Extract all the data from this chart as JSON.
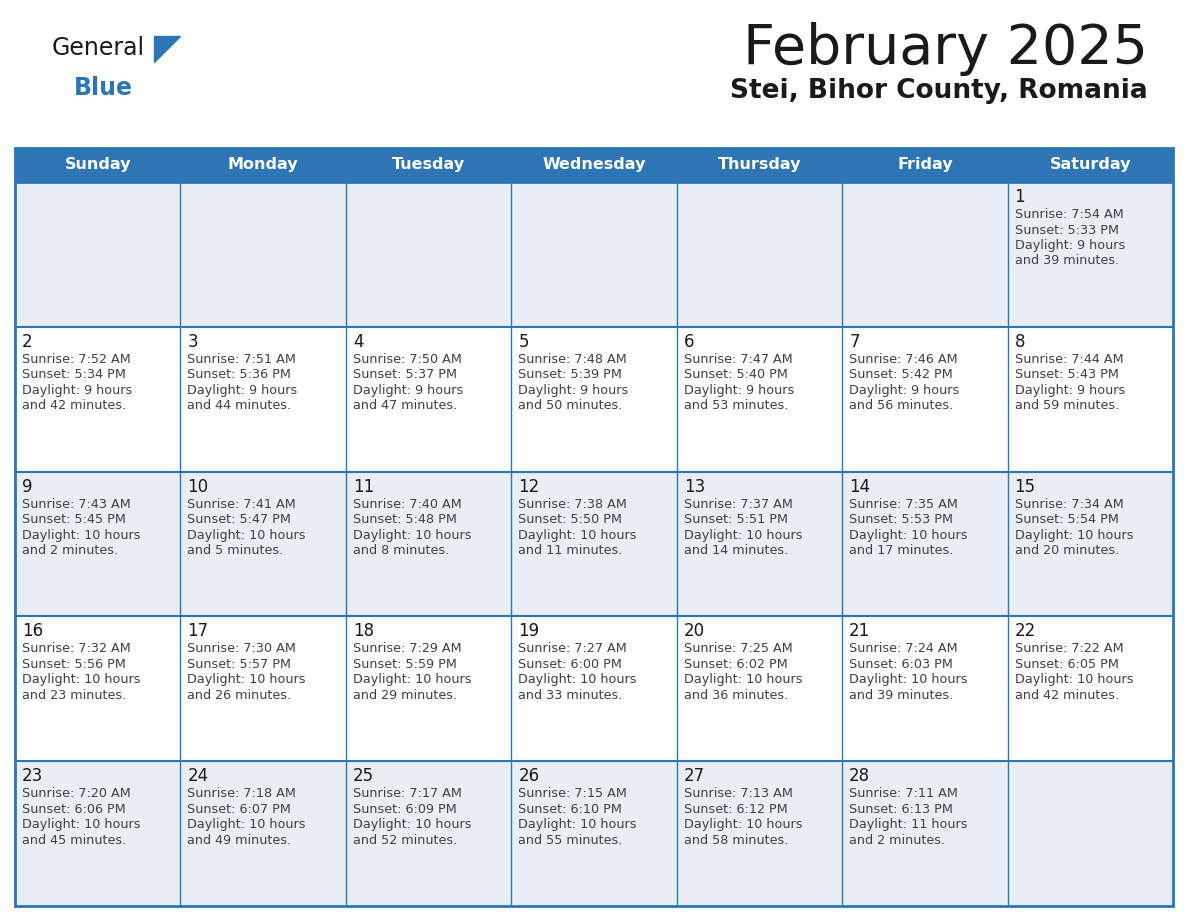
{
  "title": "February 2025",
  "subtitle": "Stei, Bihor County, Romania",
  "header_bg": "#2e75b6",
  "header_text_color": "#ffffff",
  "cell_border_color": "#2e75b6",
  "day_number_color": "#1a1a1a",
  "info_text_color": "#404040",
  "background_color": "#ffffff",
  "row1_bg": "#e8eef4",
  "days_of_week": [
    "Sunday",
    "Monday",
    "Tuesday",
    "Wednesday",
    "Thursday",
    "Friday",
    "Saturday"
  ],
  "logo_general_color": "#1a1a1a",
  "logo_blue_color": "#2e75b6",
  "calendar_data": [
    [
      null,
      null,
      null,
      null,
      null,
      null,
      {
        "day": 1,
        "sunrise": "7:54 AM",
        "sunset": "5:33 PM",
        "daylight": "9 hours and 39 minutes."
      }
    ],
    [
      {
        "day": 2,
        "sunrise": "7:52 AM",
        "sunset": "5:34 PM",
        "daylight": "9 hours and 42 minutes."
      },
      {
        "day": 3,
        "sunrise": "7:51 AM",
        "sunset": "5:36 PM",
        "daylight": "9 hours and 44 minutes."
      },
      {
        "day": 4,
        "sunrise": "7:50 AM",
        "sunset": "5:37 PM",
        "daylight": "9 hours and 47 minutes."
      },
      {
        "day": 5,
        "sunrise": "7:48 AM",
        "sunset": "5:39 PM",
        "daylight": "9 hours and 50 minutes."
      },
      {
        "day": 6,
        "sunrise": "7:47 AM",
        "sunset": "5:40 PM",
        "daylight": "9 hours and 53 minutes."
      },
      {
        "day": 7,
        "sunrise": "7:46 AM",
        "sunset": "5:42 PM",
        "daylight": "9 hours and 56 minutes."
      },
      {
        "day": 8,
        "sunrise": "7:44 AM",
        "sunset": "5:43 PM",
        "daylight": "9 hours and 59 minutes."
      }
    ],
    [
      {
        "day": 9,
        "sunrise": "7:43 AM",
        "sunset": "5:45 PM",
        "daylight": "10 hours and 2 minutes."
      },
      {
        "day": 10,
        "sunrise": "7:41 AM",
        "sunset": "5:47 PM",
        "daylight": "10 hours and 5 minutes."
      },
      {
        "day": 11,
        "sunrise": "7:40 AM",
        "sunset": "5:48 PM",
        "daylight": "10 hours and 8 minutes."
      },
      {
        "day": 12,
        "sunrise": "7:38 AM",
        "sunset": "5:50 PM",
        "daylight": "10 hours and 11 minutes."
      },
      {
        "day": 13,
        "sunrise": "7:37 AM",
        "sunset": "5:51 PM",
        "daylight": "10 hours and 14 minutes."
      },
      {
        "day": 14,
        "sunrise": "7:35 AM",
        "sunset": "5:53 PM",
        "daylight": "10 hours and 17 minutes."
      },
      {
        "day": 15,
        "sunrise": "7:34 AM",
        "sunset": "5:54 PM",
        "daylight": "10 hours and 20 minutes."
      }
    ],
    [
      {
        "day": 16,
        "sunrise": "7:32 AM",
        "sunset": "5:56 PM",
        "daylight": "10 hours and 23 minutes."
      },
      {
        "day": 17,
        "sunrise": "7:30 AM",
        "sunset": "5:57 PM",
        "daylight": "10 hours and 26 minutes."
      },
      {
        "day": 18,
        "sunrise": "7:29 AM",
        "sunset": "5:59 PM",
        "daylight": "10 hours and 29 minutes."
      },
      {
        "day": 19,
        "sunrise": "7:27 AM",
        "sunset": "6:00 PM",
        "daylight": "10 hours and 33 minutes."
      },
      {
        "day": 20,
        "sunrise": "7:25 AM",
        "sunset": "6:02 PM",
        "daylight": "10 hours and 36 minutes."
      },
      {
        "day": 21,
        "sunrise": "7:24 AM",
        "sunset": "6:03 PM",
        "daylight": "10 hours and 39 minutes."
      },
      {
        "day": 22,
        "sunrise": "7:22 AM",
        "sunset": "6:05 PM",
        "daylight": "10 hours and 42 minutes."
      }
    ],
    [
      {
        "day": 23,
        "sunrise": "7:20 AM",
        "sunset": "6:06 PM",
        "daylight": "10 hours and 45 minutes."
      },
      {
        "day": 24,
        "sunrise": "7:18 AM",
        "sunset": "6:07 PM",
        "daylight": "10 hours and 49 minutes."
      },
      {
        "day": 25,
        "sunrise": "7:17 AM",
        "sunset": "6:09 PM",
        "daylight": "10 hours and 52 minutes."
      },
      {
        "day": 26,
        "sunrise": "7:15 AM",
        "sunset": "6:10 PM",
        "daylight": "10 hours and 55 minutes."
      },
      {
        "day": 27,
        "sunrise": "7:13 AM",
        "sunset": "6:12 PM",
        "daylight": "10 hours and 58 minutes."
      },
      {
        "day": 28,
        "sunrise": "7:11 AM",
        "sunset": "6:13 PM",
        "daylight": "11 hours and 2 minutes."
      },
      null
    ]
  ]
}
